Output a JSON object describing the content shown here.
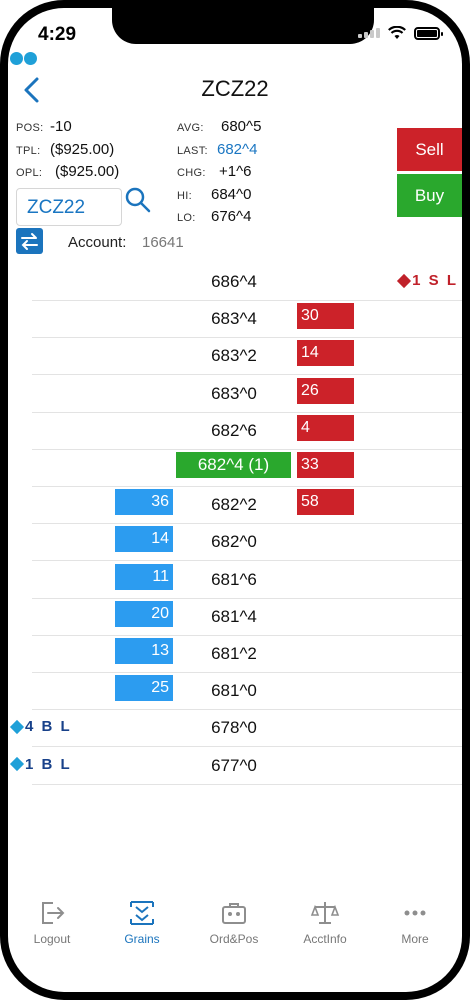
{
  "status_bar": {
    "time": "4:29"
  },
  "header": {
    "title": "ZCZ22"
  },
  "position": {
    "pos_label": "POS:",
    "pos_value": "-10",
    "tpl_label": "TPL:",
    "tpl_value": "($925.00)",
    "opl_label": "OPL:",
    "opl_value": "($925.00)"
  },
  "stats": {
    "avg_label": "AVG:",
    "avg_value": "680^5",
    "last_label": "LAST:",
    "last_value": "682^4",
    "chg_label": "CHG:",
    "chg_value": "+1^6",
    "hi_label": "HI:",
    "hi_value": "684^0",
    "lo_label": "LO:",
    "lo_value": "676^4"
  },
  "symbol": {
    "value": "ZCZ22"
  },
  "account": {
    "label": "Account:",
    "value": "16641"
  },
  "actions": {
    "sell_label": "Sell",
    "buy_label": "Buy"
  },
  "ladder": {
    "rows": [
      {
        "price": "686^4",
        "bid": "",
        "ask": "",
        "sell_order": "1 S L",
        "buy_order": ""
      },
      {
        "price": "683^4",
        "bid": "",
        "ask": "30",
        "sell_order": "",
        "buy_order": ""
      },
      {
        "price": "683^2",
        "bid": "",
        "ask": "14",
        "sell_order": "",
        "buy_order": ""
      },
      {
        "price": "683^0",
        "bid": "",
        "ask": "26",
        "sell_order": "",
        "buy_order": ""
      },
      {
        "price": "682^6",
        "bid": "",
        "ask": "4",
        "sell_order": "",
        "buy_order": ""
      },
      {
        "price": "682^4 (1)",
        "bid": "",
        "ask": "33",
        "sell_order": "",
        "buy_order": "",
        "last": true
      },
      {
        "price": "682^2",
        "bid": "36",
        "ask": "58",
        "sell_order": "",
        "buy_order": ""
      },
      {
        "price": "682^0",
        "bid": "14",
        "ask": "",
        "sell_order": "",
        "buy_order": ""
      },
      {
        "price": "681^6",
        "bid": "11",
        "ask": "",
        "sell_order": "",
        "buy_order": ""
      },
      {
        "price": "681^4",
        "bid": "20",
        "ask": "",
        "sell_order": "",
        "buy_order": ""
      },
      {
        "price": "681^2",
        "bid": "13",
        "ask": "",
        "sell_order": "",
        "buy_order": ""
      },
      {
        "price": "681^0",
        "bid": "25",
        "ask": "",
        "sell_order": "",
        "buy_order": ""
      },
      {
        "price": "678^0",
        "bid": "",
        "ask": "",
        "sell_order": "",
        "buy_order": "4 B L"
      },
      {
        "price": "677^0",
        "bid": "",
        "ask": "",
        "sell_order": "",
        "buy_order": "1 B L"
      }
    ]
  },
  "tabbar": {
    "tabs": [
      {
        "label": "Logout",
        "icon": "logout-icon",
        "active": false
      },
      {
        "label": "Grains",
        "icon": "grains-icon",
        "active": true
      },
      {
        "label": "Ord&Pos",
        "icon": "briefcase-icon",
        "active": false
      },
      {
        "label": "AcctInfo",
        "icon": "scale-icon",
        "active": false
      },
      {
        "label": "More",
        "icon": "more-icon",
        "active": false
      }
    ]
  },
  "colors": {
    "accent": "#1b74bd",
    "sell": "#cc2229",
    "buy": "#2aa82d",
    "bid": "#2c9cf0",
    "logo": "#1fa0d8"
  }
}
